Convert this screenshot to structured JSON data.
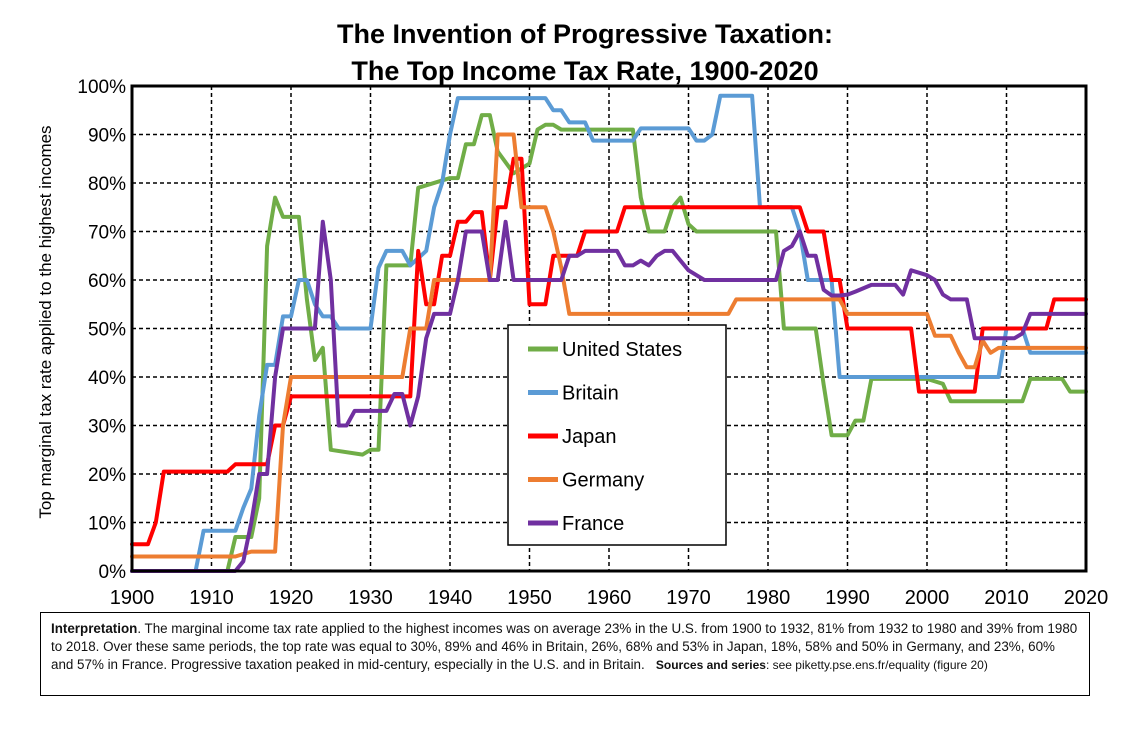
{
  "chart_data": {
    "type": "line",
    "title": "The Invention of Progressive Taxation:",
    "subtitle": "The Top Income Tax Rate, 1900-2020",
    "ylabel": "Top marginal tax rate applied to the highest incomes",
    "xlabel": "",
    "xlim": [
      1900,
      2020
    ],
    "ylim": [
      0,
      100
    ],
    "x_ticks": [
      "1900",
      "1910",
      "1920",
      "1930",
      "1940",
      "1950",
      "1960",
      "1970",
      "1980",
      "1990",
      "2000",
      "2010",
      "2020"
    ],
    "y_ticks": [
      "0%",
      "10%",
      "20%",
      "30%",
      "40%",
      "50%",
      "60%",
      "70%",
      "80%",
      "90%",
      "100%"
    ],
    "grid": true,
    "legend_position": "center",
    "series": [
      {
        "name": "United States",
        "color": "#70ad47",
        "points": [
          [
            1900,
            0
          ],
          [
            1912,
            0
          ],
          [
            1913,
            7
          ],
          [
            1915,
            7
          ],
          [
            1916,
            15
          ],
          [
            1917,
            67
          ],
          [
            1918,
            77
          ],
          [
            1919,
            73
          ],
          [
            1921,
            73
          ],
          [
            1922,
            56
          ],
          [
            1923,
            43.5
          ],
          [
            1924,
            46
          ],
          [
            1925,
            25
          ],
          [
            1929,
            24
          ],
          [
            1930,
            25
          ],
          [
            1931,
            25
          ],
          [
            1932,
            63
          ],
          [
            1935,
            63
          ],
          [
            1936,
            79
          ],
          [
            1940,
            81
          ],
          [
            1941,
            81
          ],
          [
            1942,
            88
          ],
          [
            1943,
            88
          ],
          [
            1944,
            94
          ],
          [
            1945,
            94
          ],
          [
            1946,
            86.5
          ],
          [
            1948,
            82
          ],
          [
            1950,
            84
          ],
          [
            1951,
            91
          ],
          [
            1952,
            92
          ],
          [
            1953,
            92
          ],
          [
            1954,
            91
          ],
          [
            1963,
            91
          ],
          [
            1964,
            77
          ],
          [
            1965,
            70
          ],
          [
            1967,
            70
          ],
          [
            1968,
            75
          ],
          [
            1969,
            77
          ],
          [
            1970,
            71.5
          ],
          [
            1971,
            70
          ],
          [
            1981,
            70
          ],
          [
            1982,
            50
          ],
          [
            1986,
            50
          ],
          [
            1987,
            38.5
          ],
          [
            1988,
            28
          ],
          [
            1990,
            28
          ],
          [
            1991,
            31
          ],
          [
            1992,
            31
          ],
          [
            1993,
            39.6
          ],
          [
            2000,
            39.6
          ],
          [
            2001,
            39.1
          ],
          [
            2002,
            38.6
          ],
          [
            2003,
            35
          ],
          [
            2012,
            35
          ],
          [
            2013,
            39.6
          ],
          [
            2017,
            39.6
          ],
          [
            2018,
            37
          ],
          [
            2020,
            37
          ]
        ]
      },
      {
        "name": "Britain",
        "color": "#5b9bd5",
        "points": [
          [
            1900,
            0
          ],
          [
            1908,
            0
          ],
          [
            1909,
            8.3
          ],
          [
            1913,
            8.3
          ],
          [
            1914,
            13
          ],
          [
            1915,
            17
          ],
          [
            1916,
            32
          ],
          [
            1917,
            42.5
          ],
          [
            1918,
            42.5
          ],
          [
            1919,
            52.5
          ],
          [
            1920,
            52.5
          ],
          [
            1921,
            60
          ],
          [
            1922,
            60
          ],
          [
            1923,
            55
          ],
          [
            1924,
            52.5
          ],
          [
            1925,
            52.5
          ],
          [
            1926,
            50
          ],
          [
            1930,
            50
          ],
          [
            1931,
            62.5
          ],
          [
            1932,
            66
          ],
          [
            1934,
            66
          ],
          [
            1935,
            63
          ],
          [
            1937,
            66
          ],
          [
            1938,
            75
          ],
          [
            1939,
            80
          ],
          [
            1940,
            90
          ],
          [
            1941,
            97.5
          ],
          [
            1952,
            97.5
          ],
          [
            1953,
            95
          ],
          [
            1954,
            95
          ],
          [
            1955,
            92.5
          ],
          [
            1957,
            92.5
          ],
          [
            1958,
            88.75
          ],
          [
            1963,
            88.75
          ],
          [
            1964,
            91.25
          ],
          [
            1970,
            91.25
          ],
          [
            1971,
            88.75
          ],
          [
            1972,
            88.75
          ],
          [
            1973,
            90
          ],
          [
            1974,
            98
          ],
          [
            1978,
            98
          ],
          [
            1979,
            75
          ],
          [
            1983,
            75
          ],
          [
            1984,
            70
          ],
          [
            1985,
            60
          ],
          [
            1988,
            60
          ],
          [
            1989,
            40
          ],
          [
            2009,
            40
          ],
          [
            2010,
            50
          ],
          [
            2012,
            50
          ],
          [
            2013,
            45
          ],
          [
            2020,
            45
          ]
        ]
      },
      {
        "name": "Japan",
        "color": "#ff0000",
        "points": [
          [
            1900,
            5.5
          ],
          [
            1902,
            5.5
          ],
          [
            1903,
            10
          ],
          [
            1904,
            20.5
          ],
          [
            1912,
            20.5
          ],
          [
            1913,
            22
          ],
          [
            1917,
            22
          ],
          [
            1918,
            30
          ],
          [
            1919,
            30
          ],
          [
            1920,
            36
          ],
          [
            1935,
            36
          ],
          [
            1936,
            66
          ],
          [
            1937,
            55
          ],
          [
            1938,
            55
          ],
          [
            1939,
            65
          ],
          [
            1940,
            65
          ],
          [
            1941,
            72
          ],
          [
            1942,
            72
          ],
          [
            1943,
            74
          ],
          [
            1944,
            74
          ],
          [
            1945,
            60
          ],
          [
            1946,
            75
          ],
          [
            1947,
            75
          ],
          [
            1948,
            85
          ],
          [
            1949,
            85
          ],
          [
            1950,
            55
          ],
          [
            1952,
            55
          ],
          [
            1953,
            65
          ],
          [
            1956,
            65
          ],
          [
            1957,
            70
          ],
          [
            1961,
            70
          ],
          [
            1962,
            75
          ],
          [
            1984,
            75
          ],
          [
            1985,
            70
          ],
          [
            1987,
            70
          ],
          [
            1988,
            60
          ],
          [
            1989,
            60
          ],
          [
            1990,
            50
          ],
          [
            1998,
            50
          ],
          [
            1999,
            37
          ],
          [
            2006,
            37
          ],
          [
            2007,
            50
          ],
          [
            2015,
            50
          ],
          [
            2016,
            56
          ],
          [
            2020,
            56
          ]
        ]
      },
      {
        "name": "Germany",
        "color": "#ed7d31",
        "points": [
          [
            1900,
            3
          ],
          [
            1912,
            3
          ],
          [
            1913,
            3
          ],
          [
            1915,
            4
          ],
          [
            1916,
            4
          ],
          [
            1918,
            4
          ],
          [
            1919,
            30
          ],
          [
            1920,
            40
          ],
          [
            1934,
            40
          ],
          [
            1935,
            50
          ],
          [
            1937,
            50
          ],
          [
            1938,
            60
          ],
          [
            1945,
            60
          ],
          [
            1946,
            90
          ],
          [
            1948,
            90
          ],
          [
            1949,
            75
          ],
          [
            1952,
            75
          ],
          [
            1953,
            70
          ],
          [
            1954,
            62.5
          ],
          [
            1955,
            53
          ],
          [
            1975,
            53
          ],
          [
            1976,
            56
          ],
          [
            1989,
            56
          ],
          [
            1990,
            53
          ],
          [
            2000,
            53
          ],
          [
            2001,
            48.5
          ],
          [
            2003,
            48.5
          ],
          [
            2004,
            45
          ],
          [
            2005,
            42
          ],
          [
            2006,
            42
          ],
          [
            2007,
            47.5
          ],
          [
            2008,
            45
          ],
          [
            2009,
            46
          ],
          [
            2020,
            46
          ]
        ]
      },
      {
        "name": "France",
        "color": "#7030a0",
        "points": [
          [
            1900,
            0
          ],
          [
            1913,
            0
          ],
          [
            1914,
            2
          ],
          [
            1915,
            10
          ],
          [
            1916,
            20
          ],
          [
            1917,
            20
          ],
          [
            1918,
            40
          ],
          [
            1919,
            50
          ],
          [
            1923,
            50
          ],
          [
            1924,
            72
          ],
          [
            1925,
            60
          ],
          [
            1926,
            30
          ],
          [
            1927,
            30
          ],
          [
            1928,
            33
          ],
          [
            1932,
            33
          ],
          [
            1933,
            36.5
          ],
          [
            1934,
            36.5
          ],
          [
            1935,
            30
          ],
          [
            1936,
            36
          ],
          [
            1937,
            48
          ],
          [
            1938,
            53
          ],
          [
            1940,
            53
          ],
          [
            1941,
            60
          ],
          [
            1942,
            70
          ],
          [
            1944,
            70
          ],
          [
            1945,
            60
          ],
          [
            1946,
            60
          ],
          [
            1947,
            72
          ],
          [
            1948,
            60
          ],
          [
            1954,
            60
          ],
          [
            1955,
            65
          ],
          [
            1956,
            65
          ],
          [
            1957,
            66
          ],
          [
            1961,
            66
          ],
          [
            1962,
            63
          ],
          [
            1963,
            63
          ],
          [
            1964,
            64
          ],
          [
            1965,
            63
          ],
          [
            1966,
            65
          ],
          [
            1967,
            66
          ],
          [
            1968,
            66
          ],
          [
            1969,
            64
          ],
          [
            1970,
            62
          ],
          [
            1971,
            61
          ],
          [
            1972,
            60
          ],
          [
            1981,
            60
          ],
          [
            1982,
            66
          ],
          [
            1983,
            67
          ],
          [
            1984,
            70
          ],
          [
            1985,
            65
          ],
          [
            1986,
            65
          ],
          [
            1987,
            58
          ],
          [
            1988,
            56.8
          ],
          [
            1989,
            56.8
          ],
          [
            1990,
            57
          ],
          [
            1991,
            57.6
          ],
          [
            1993,
            59
          ],
          [
            1996,
            59
          ],
          [
            1997,
            57
          ],
          [
            1998,
            62
          ],
          [
            2000,
            61
          ],
          [
            2001,
            60
          ],
          [
            2002,
            57
          ],
          [
            2003,
            56
          ],
          [
            2005,
            56
          ],
          [
            2006,
            48
          ],
          [
            2011,
            48
          ],
          [
            2012,
            49
          ],
          [
            2013,
            53
          ],
          [
            2020,
            53
          ]
        ]
      }
    ]
  },
  "note": {
    "label": "Interpretation",
    "text": ". The marginal income tax rate applied to the highest incomes was on average 23% in the U.S. from 1900 to 1932, 81% from 1932 to 1980 and 39% from 1980 to 2018. Over these same periods, the top rate was equal to 30%, 89% and 46% in Britain, 26%, 68% and 53% in Japan, 18%, 58% and 50% in Germany, and 23%, 60% and 57% in France. Progressive taxation peaked in mid-century, especially in the U.S. and in Britain.",
    "sources_label": "Sources and series",
    "sources_text": ": see piketty.pse.ens.fr/equality (figure 20)"
  }
}
